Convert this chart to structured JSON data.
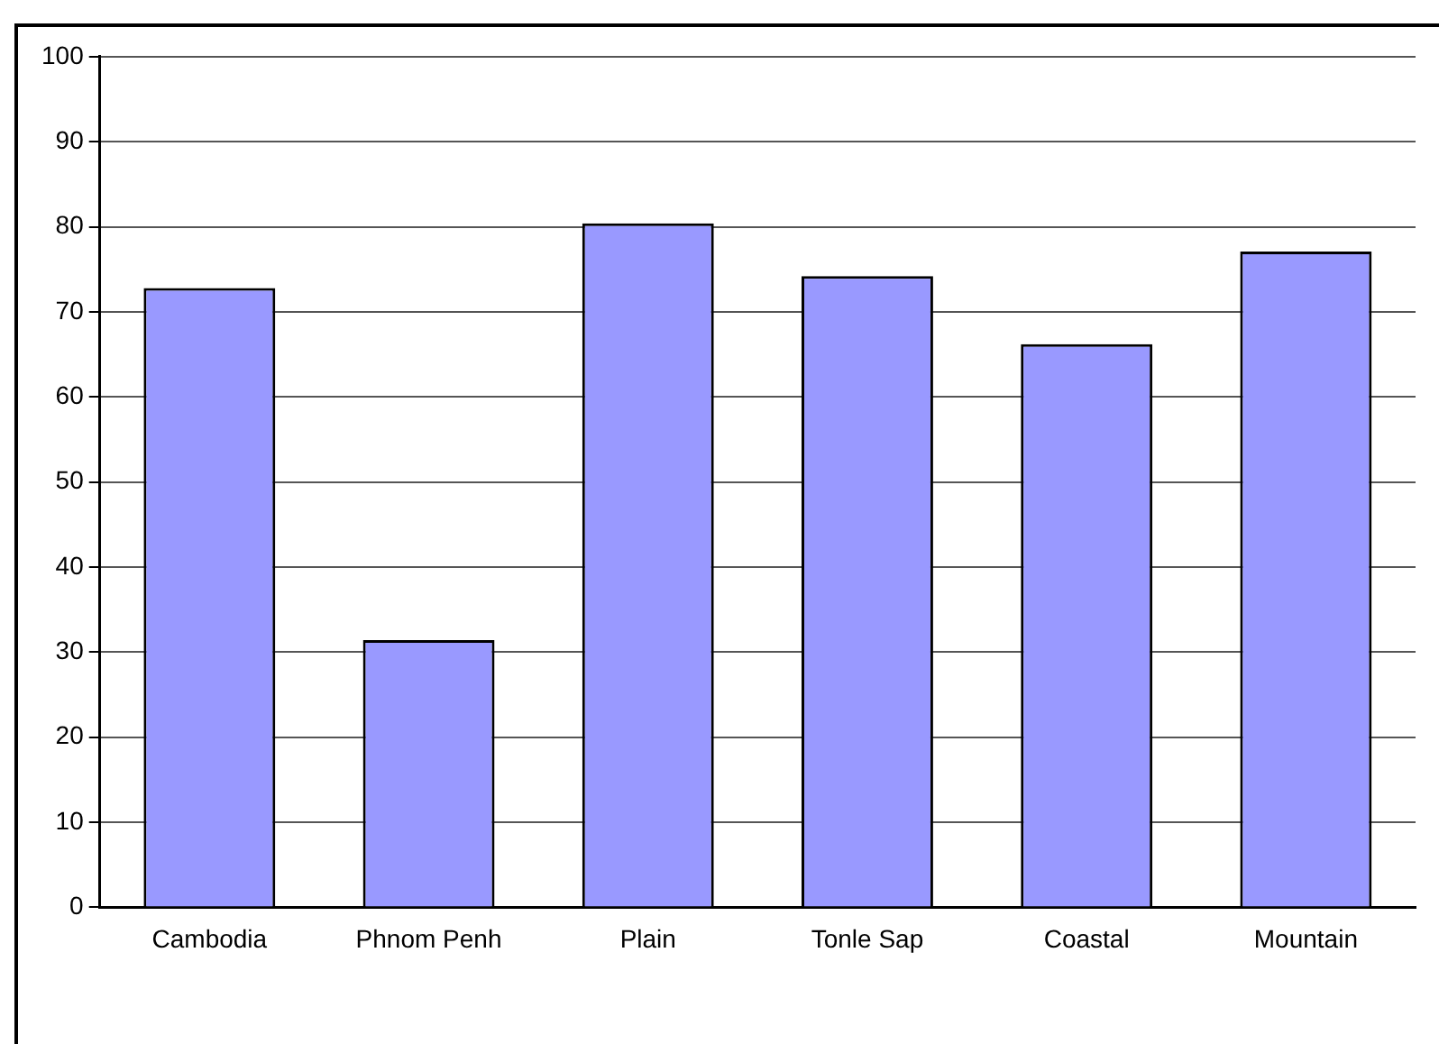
{
  "chart_data": {
    "type": "bar",
    "categories": [
      "Cambodia",
      "Phnom Penh",
      "Plain",
      "Tonle Sap",
      "Coastal",
      "Mountain"
    ],
    "values": [
      72.8,
      31.4,
      80.4,
      74.2,
      66.2,
      77.1
    ],
    "color": "#9999ff",
    "ylim": [
      0,
      100
    ],
    "yticks": [
      0,
      10,
      20,
      30,
      40,
      50,
      60,
      70,
      80,
      90,
      100
    ],
    "grid": "y",
    "legend": false
  }
}
